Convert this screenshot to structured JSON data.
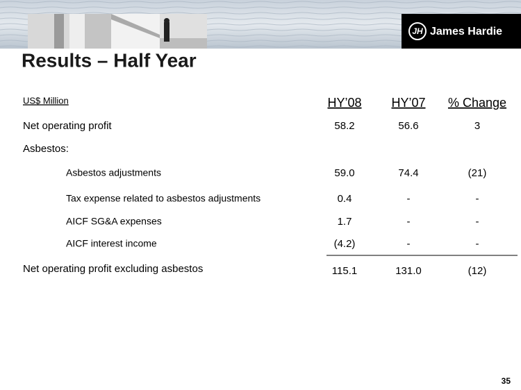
{
  "header": {
    "title": "Results – Half Year",
    "logo_mark": "JH",
    "logo_text": "James Hardie"
  },
  "table": {
    "unit": "US$ Million",
    "columns": [
      "HY’08",
      "HY’07",
      "% Change"
    ],
    "rows": [
      {
        "label": "Net operating profit",
        "values": [
          "58.2",
          "56.6",
          "3"
        ]
      },
      {
        "label": "Asbestos:"
      },
      {
        "label": "Asbestos adjustments",
        "values": [
          "59.0",
          "74.4",
          "(21)"
        ]
      },
      {
        "label": "Tax expense related to asbestos adjustments",
        "values": [
          "0.4",
          "-",
          "-"
        ]
      },
      {
        "label": "AICF SG&A expenses",
        "values": [
          "1.7",
          "-",
          "-"
        ]
      },
      {
        "label": "AICF interest income",
        "values": [
          "(4.2)",
          "-",
          "-"
        ]
      },
      {
        "label": "Net operating profit excluding asbestos",
        "values": [
          "115.1",
          "131.0",
          "(12)"
        ]
      }
    ]
  },
  "footer": {
    "page_number": "35"
  }
}
